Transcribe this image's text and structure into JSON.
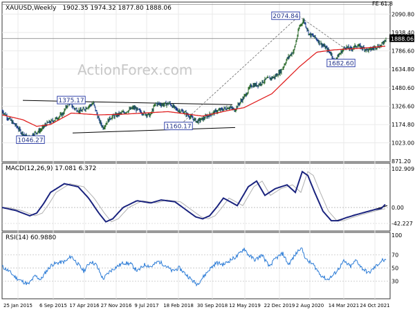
{
  "chart_data": [
    {
      "type": "candlestick",
      "title": "XAUUSD,Weekly",
      "ohlc_readout": "1902.35 1974.32 1877.80 1888.06",
      "watermark": "ActionForex.com",
      "fib_label": "FE 61.8",
      "current_price": "1888.06",
      "ylim": [
        871.2,
        2185
      ],
      "y_ticks": [
        "2090.80",
        "1938.40",
        "1786.60",
        "1634.80",
        "1480.60",
        "1326.60",
        "1174.80",
        "1023.00",
        "871.20"
      ],
      "x_tick_labels": [
        "25 Jan 2015",
        "6 Sep 2015",
        "17 Apr 2016",
        "27 Nov 2016",
        "9 Jul 2017",
        "18 Feb 2018",
        "30 Sep 2018",
        "12 May 2019",
        "22 Dec 2019",
        "2 Aug 2020",
        "14 Mar 2021",
        "24 Oct 2021"
      ],
      "annotations": [
        "2074.84",
        "1375.17",
        "1160.17",
        "1046.27",
        "1682.60"
      ],
      "price_anchors": [
        [
          0,
          1290
        ],
        [
          10,
          1220
        ],
        [
          20,
          1165
        ],
        [
          28,
          1110
        ],
        [
          38,
          1060
        ],
        [
          44,
          1095
        ],
        [
          56,
          1130
        ],
        [
          64,
          1180
        ],
        [
          76,
          1215
        ],
        [
          88,
          1265
        ],
        [
          96,
          1360
        ],
        [
          104,
          1310
        ],
        [
          114,
          1285
        ],
        [
          124,
          1325
        ],
        [
          132,
          1350
        ],
        [
          140,
          1210
        ],
        [
          146,
          1150
        ],
        [
          156,
          1230
        ],
        [
          166,
          1255
        ],
        [
          178,
          1280
        ],
        [
          190,
          1315
        ],
        [
          202,
          1275
        ],
        [
          214,
          1250
        ],
        [
          222,
          1350
        ],
        [
          232,
          1340
        ],
        [
          242,
          1350
        ],
        [
          252,
          1300
        ],
        [
          262,
          1280
        ],
        [
          272,
          1240
        ],
        [
          282,
          1200
        ],
        [
          290,
          1222
        ],
        [
          298,
          1250
        ],
        [
          308,
          1280
        ],
        [
          318,
          1300
        ],
        [
          328,
          1320
        ],
        [
          336,
          1295
        ],
        [
          344,
          1360
        ],
        [
          352,
          1420
        ],
        [
          360,
          1500
        ],
        [
          370,
          1505
        ],
        [
          382,
          1550
        ],
        [
          394,
          1570
        ],
        [
          404,
          1625
        ],
        [
          412,
          1720
        ],
        [
          422,
          1790
        ],
        [
          430,
          1990
        ],
        [
          436,
          2040
        ],
        [
          444,
          1925
        ],
        [
          452,
          1900
        ],
        [
          460,
          1850
        ],
        [
          468,
          1810
        ],
        [
          476,
          1760
        ],
        [
          480,
          1700
        ],
        [
          488,
          1760
        ],
        [
          496,
          1820
        ],
        [
          504,
          1800
        ],
        [
          512,
          1830
        ],
        [
          520,
          1815
        ],
        [
          530,
          1790
        ],
        [
          540,
          1820
        ],
        [
          548,
          1830
        ],
        [
          555,
          1890
        ]
      ],
      "ma_anchors": [
        [
          0,
          1255
        ],
        [
          30,
          1215
        ],
        [
          50,
          1160
        ],
        [
          70,
          1175
        ],
        [
          100,
          1270
        ],
        [
          140,
          1255
        ],
        [
          180,
          1262
        ],
        [
          240,
          1282
        ],
        [
          290,
          1245
        ],
        [
          330,
          1295
        ],
        [
          350,
          1315
        ],
        [
          390,
          1430
        ],
        [
          430,
          1655
        ],
        [
          455,
          1775
        ],
        [
          480,
          1795
        ],
        [
          520,
          1808
        ],
        [
          555,
          1825
        ]
      ]
    },
    {
      "type": "line",
      "title": "MACD(12,26,9) 17.081 6.372",
      "ylim": [
        -55,
        110
      ],
      "y_ticks": [
        "102.909",
        "0.00",
        "-42.227"
      ],
      "macd_anchors": [
        [
          0,
          0
        ],
        [
          20,
          -8
        ],
        [
          40,
          -22
        ],
        [
          50,
          -15
        ],
        [
          60,
          10
        ],
        [
          70,
          40
        ],
        [
          90,
          63
        ],
        [
          110,
          55
        ],
        [
          125,
          25
        ],
        [
          140,
          -15
        ],
        [
          150,
          -38
        ],
        [
          160,
          -30
        ],
        [
          175,
          0
        ],
        [
          195,
          18
        ],
        [
          215,
          12
        ],
        [
          230,
          20
        ],
        [
          250,
          15
        ],
        [
          265,
          -5
        ],
        [
          280,
          -25
        ],
        [
          290,
          -30
        ],
        [
          300,
          -22
        ],
        [
          310,
          0
        ],
        [
          320,
          25
        ],
        [
          340,
          5
        ],
        [
          356,
          55
        ],
        [
          368,
          70
        ],
        [
          380,
          32
        ],
        [
          395,
          50
        ],
        [
          412,
          60
        ],
        [
          424,
          40
        ],
        [
          434,
          95
        ],
        [
          442,
          85
        ],
        [
          452,
          40
        ],
        [
          464,
          -10
        ],
        [
          476,
          -35
        ],
        [
          486,
          -35
        ],
        [
          496,
          -28
        ],
        [
          510,
          -20
        ],
        [
          520,
          -15
        ],
        [
          530,
          -10
        ],
        [
          540,
          -5
        ],
        [
          548,
          -3
        ],
        [
          555,
          10
        ]
      ],
      "trendline_label": ""
    },
    {
      "type": "line",
      "title": "RSI(14) 60.9880",
      "ylim": [
        5,
        100
      ],
      "y_ticks": [
        "100",
        "70",
        "50",
        "30"
      ],
      "rsi_anchors": [
        [
          0,
          52
        ],
        [
          10,
          45
        ],
        [
          20,
          35
        ],
        [
          28,
          30
        ],
        [
          38,
          25
        ],
        [
          48,
          38
        ],
        [
          56,
          32
        ],
        [
          64,
          45
        ],
        [
          72,
          55
        ],
        [
          82,
          58
        ],
        [
          92,
          60
        ],
        [
          100,
          68
        ],
        [
          108,
          58
        ],
        [
          118,
          45
        ],
        [
          128,
          60
        ],
        [
          136,
          55
        ],
        [
          146,
          33
        ],
        [
          156,
          45
        ],
        [
          166,
          52
        ],
        [
          176,
          58
        ],
        [
          186,
          56
        ],
        [
          196,
          45
        ],
        [
          206,
          55
        ],
        [
          216,
          52
        ],
        [
          226,
          60
        ],
        [
          236,
          54
        ],
        [
          246,
          45
        ],
        [
          256,
          50
        ],
        [
          266,
          40
        ],
        [
          276,
          30
        ],
        [
          282,
          25
        ],
        [
          290,
          35
        ],
        [
          300,
          48
        ],
        [
          310,
          58
        ],
        [
          320,
          55
        ],
        [
          330,
          62
        ],
        [
          340,
          68
        ],
        [
          350,
          80
        ],
        [
          356,
          70
        ],
        [
          366,
          62
        ],
        [
          376,
          70
        ],
        [
          386,
          52
        ],
        [
          396,
          65
        ],
        [
          406,
          72
        ],
        [
          414,
          55
        ],
        [
          424,
          70
        ],
        [
          432,
          82
        ],
        [
          440,
          62
        ],
        [
          450,
          55
        ],
        [
          460,
          40
        ],
        [
          470,
          32
        ],
        [
          478,
          38
        ],
        [
          486,
          48
        ],
        [
          494,
          60
        ],
        [
          504,
          52
        ],
        [
          512,
          62
        ],
        [
          520,
          50
        ],
        [
          530,
          42
        ],
        [
          540,
          52
        ],
        [
          550,
          62
        ],
        [
          555,
          60
        ]
      ]
    }
  ]
}
